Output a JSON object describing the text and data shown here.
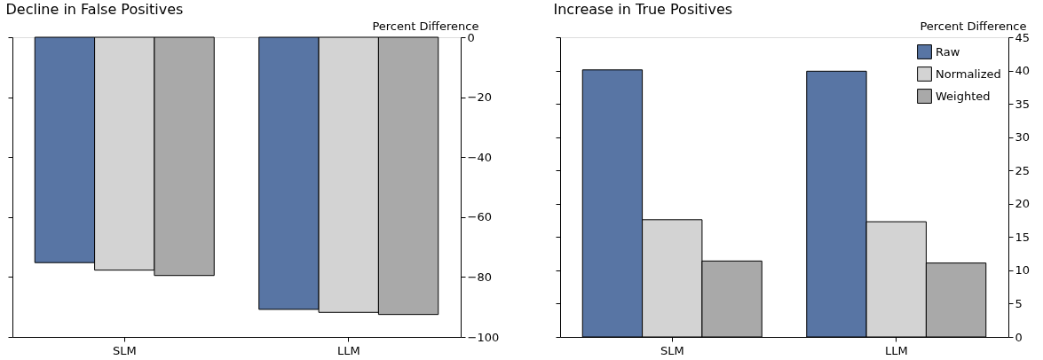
{
  "chart_data": [
    {
      "type": "bar",
      "title": "Decline in False Positives",
      "ylabel": "Percent Difference",
      "categories": [
        "SLM",
        "LLM"
      ],
      "series": [
        {
          "color": "#5875a4",
          "values": [
            -75.2,
            -90.8
          ]
        },
        {
          "color": "#d3d3d3",
          "values": [
            -77.7,
            -91.8
          ]
        },
        {
          "color": "#a9a9a9",
          "values": [
            -79.5,
            -92.5
          ]
        }
      ],
      "ylim": [
        -100,
        0
      ],
      "yticks": [
        -100,
        -80,
        -60,
        -40,
        -20,
        0
      ],
      "grid": false
    },
    {
      "type": "bar",
      "title": "Increase in True Positives",
      "ylabel": "Percent Difference",
      "categories": [
        "SLM",
        "LLM"
      ],
      "series": [
        {
          "name": "Raw",
          "color": "#5875a4",
          "values": [
            40.1,
            39.9
          ]
        },
        {
          "name": "Normalized",
          "color": "#d3d3d3",
          "values": [
            17.6,
            17.3
          ]
        },
        {
          "name": "Weighted",
          "color": "#a9a9a9",
          "values": [
            11.4,
            11.1
          ]
        }
      ],
      "ylim": [
        0,
        45
      ],
      "yticks": [
        0,
        5,
        10,
        15,
        20,
        25,
        30,
        35,
        40,
        45
      ],
      "grid": false,
      "legend": "top right"
    }
  ]
}
